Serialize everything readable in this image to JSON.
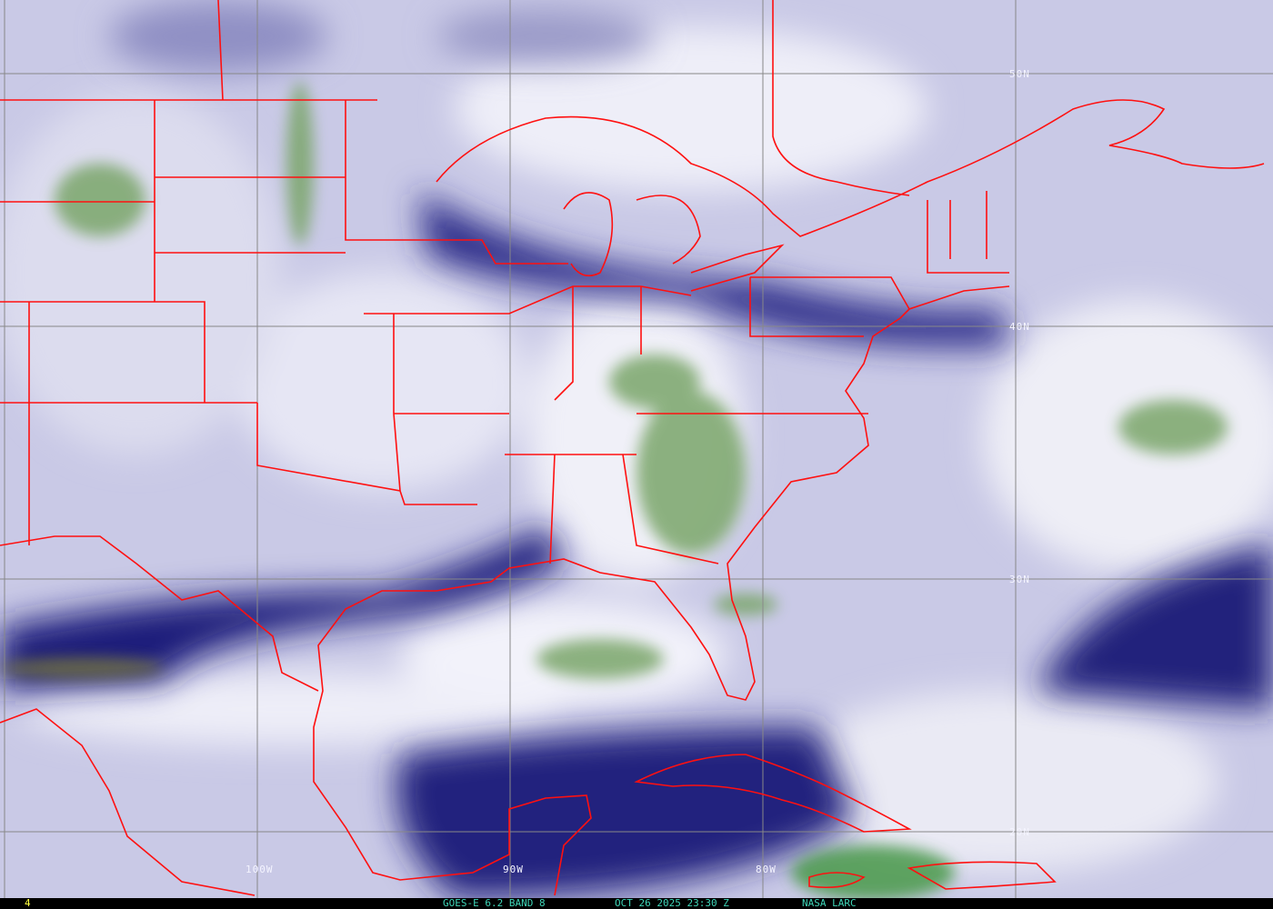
{
  "image": {
    "type": "satellite water vapor imagery",
    "colors": {
      "background": "#c9c9e6",
      "dry_dark": "#1a1a78",
      "moist": "#f2f2fa",
      "cloud_green": "#6a9a5a",
      "borders": "#ff1010",
      "grid": "#808080",
      "caption": "#3fd6b8",
      "frame_number": "#ffff40"
    }
  },
  "grid_labels": {
    "lat": [
      "50N",
      "40N",
      "30N",
      "20N"
    ],
    "lon": [
      "100W",
      "90W",
      "80W"
    ]
  },
  "caption": {
    "frame": "4",
    "product": "GOES-E 6.2 BAND 8",
    "datetime": "OCT 26 2025 23:30 Z",
    "source": "NASA LARC"
  }
}
